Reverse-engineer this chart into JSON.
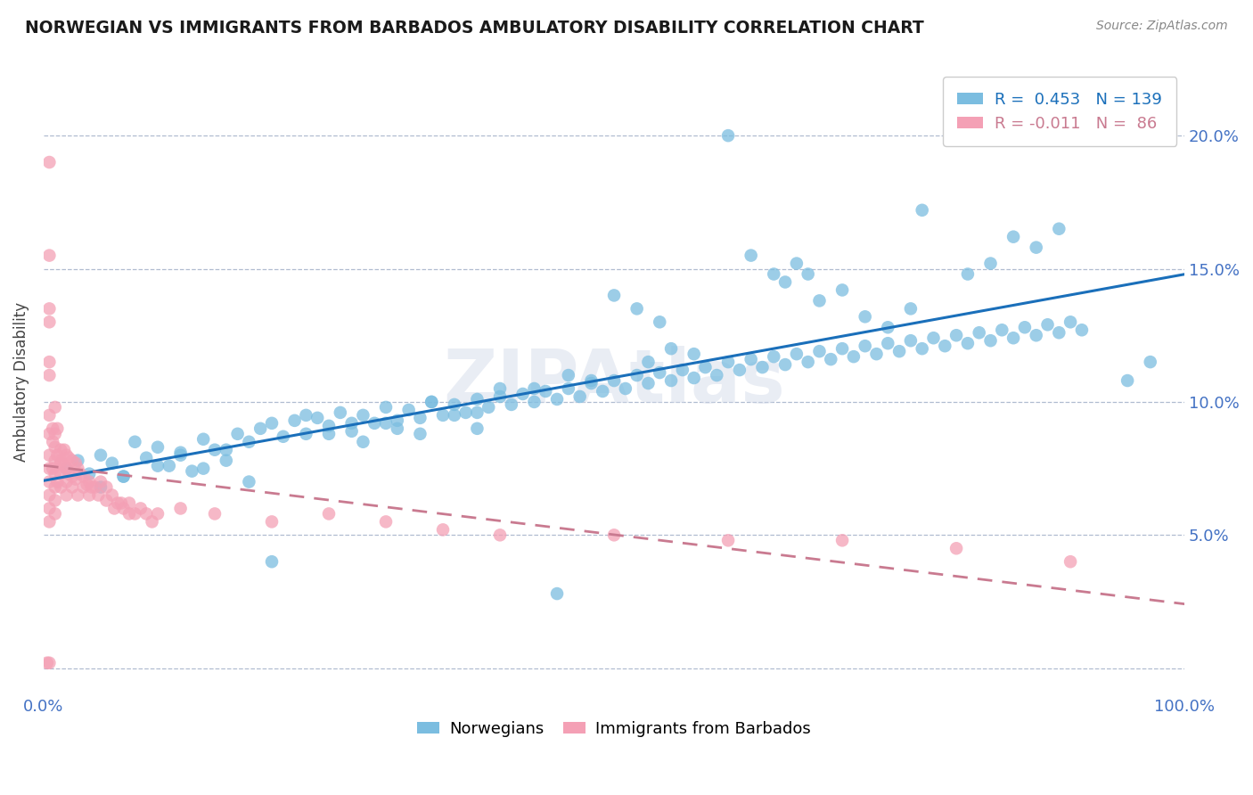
{
  "title": "NORWEGIAN VS IMMIGRANTS FROM BARBADOS AMBULATORY DISABILITY CORRELATION CHART",
  "source": "Source: ZipAtlas.com",
  "ylabel": "Ambulatory Disability",
  "xlim": [
    0.0,
    1.0
  ],
  "ylim": [
    -0.01,
    0.225
  ],
  "legend_blue_r": "0.453",
  "legend_blue_n": "139",
  "legend_pink_r": "-0.011",
  "legend_pink_n": "86",
  "blue_color": "#7bbde0",
  "pink_color": "#f4a0b5",
  "blue_line_color": "#1a6fba",
  "pink_line_color": "#c97a90",
  "legend_label_blue": "Norwegians",
  "legend_label_pink": "Immigrants from Barbados",
  "blue_scatter_x": [
    0.02,
    0.03,
    0.04,
    0.05,
    0.06,
    0.07,
    0.08,
    0.09,
    0.1,
    0.11,
    0.12,
    0.13,
    0.14,
    0.15,
    0.16,
    0.17,
    0.18,
    0.19,
    0.2,
    0.21,
    0.22,
    0.23,
    0.24,
    0.25,
    0.26,
    0.27,
    0.28,
    0.29,
    0.3,
    0.31,
    0.32,
    0.33,
    0.34,
    0.35,
    0.36,
    0.37,
    0.38,
    0.39,
    0.4,
    0.41,
    0.42,
    0.43,
    0.44,
    0.45,
    0.46,
    0.47,
    0.48,
    0.49,
    0.5,
    0.51,
    0.52,
    0.53,
    0.54,
    0.55,
    0.56,
    0.57,
    0.58,
    0.59,
    0.6,
    0.61,
    0.62,
    0.63,
    0.64,
    0.65,
    0.66,
    0.67,
    0.68,
    0.69,
    0.7,
    0.71,
    0.72,
    0.73,
    0.74,
    0.75,
    0.76,
    0.77,
    0.78,
    0.79,
    0.8,
    0.81,
    0.82,
    0.83,
    0.84,
    0.85,
    0.86,
    0.87,
    0.88,
    0.89,
    0.9,
    0.91,
    0.5,
    0.52,
    0.54,
    0.23,
    0.25,
    0.27,
    0.14,
    0.16,
    0.18,
    0.34,
    0.36,
    0.38,
    0.62,
    0.64,
    0.66,
    0.43,
    0.46,
    0.48,
    0.72,
    0.74,
    0.76,
    0.53,
    0.55,
    0.57,
    0.31,
    0.33,
    0.38,
    0.28,
    0.3,
    0.68,
    0.7,
    0.81,
    0.83,
    0.05,
    0.07,
    0.1,
    0.12,
    0.4,
    0.65,
    0.85,
    0.87,
    0.89,
    0.67,
    0.77,
    0.6,
    0.95,
    0.97,
    0.2,
    0.45
  ],
  "blue_scatter_y": [
    0.075,
    0.078,
    0.073,
    0.08,
    0.077,
    0.072,
    0.085,
    0.079,
    0.083,
    0.076,
    0.081,
    0.074,
    0.086,
    0.082,
    0.078,
    0.088,
    0.085,
    0.09,
    0.092,
    0.087,
    0.093,
    0.088,
    0.094,
    0.091,
    0.096,
    0.089,
    0.095,
    0.092,
    0.098,
    0.093,
    0.097,
    0.094,
    0.1,
    0.095,
    0.099,
    0.096,
    0.101,
    0.098,
    0.102,
    0.099,
    0.103,
    0.1,
    0.104,
    0.101,
    0.105,
    0.102,
    0.107,
    0.104,
    0.108,
    0.105,
    0.11,
    0.107,
    0.111,
    0.108,
    0.112,
    0.109,
    0.113,
    0.11,
    0.115,
    0.112,
    0.116,
    0.113,
    0.117,
    0.114,
    0.118,
    0.115,
    0.119,
    0.116,
    0.12,
    0.117,
    0.121,
    0.118,
    0.122,
    0.119,
    0.123,
    0.12,
    0.124,
    0.121,
    0.125,
    0.122,
    0.126,
    0.123,
    0.127,
    0.124,
    0.128,
    0.125,
    0.129,
    0.126,
    0.13,
    0.127,
    0.14,
    0.135,
    0.13,
    0.095,
    0.088,
    0.092,
    0.075,
    0.082,
    0.07,
    0.1,
    0.095,
    0.09,
    0.155,
    0.148,
    0.152,
    0.105,
    0.11,
    0.108,
    0.132,
    0.128,
    0.135,
    0.115,
    0.12,
    0.118,
    0.09,
    0.088,
    0.096,
    0.085,
    0.092,
    0.138,
    0.142,
    0.148,
    0.152,
    0.068,
    0.072,
    0.076,
    0.08,
    0.105,
    0.145,
    0.162,
    0.158,
    0.165,
    0.148,
    0.172,
    0.2,
    0.108,
    0.115,
    0.04,
    0.028
  ],
  "pink_scatter_x": [
    0.005,
    0.005,
    0.005,
    0.005,
    0.005,
    0.005,
    0.005,
    0.005,
    0.005,
    0.005,
    0.01,
    0.01,
    0.01,
    0.01,
    0.01,
    0.01,
    0.01,
    0.01,
    0.015,
    0.015,
    0.015,
    0.015,
    0.015,
    0.02,
    0.02,
    0.02,
    0.02,
    0.025,
    0.025,
    0.025,
    0.03,
    0.03,
    0.035,
    0.035,
    0.04,
    0.04,
    0.045,
    0.05,
    0.055,
    0.06,
    0.065,
    0.07,
    0.075,
    0.08,
    0.085,
    0.09,
    0.095,
    0.1,
    0.12,
    0.15,
    0.2,
    0.25,
    0.3,
    0.35,
    0.4,
    0.5,
    0.6,
    0.7,
    0.8,
    0.9,
    0.005,
    0.005,
    0.005,
    0.005,
    0.005,
    0.008,
    0.008,
    0.008,
    0.012,
    0.012,
    0.012,
    0.018,
    0.018,
    0.022,
    0.022,
    0.028,
    0.028,
    0.032,
    0.038,
    0.042,
    0.048,
    0.055,
    0.062,
    0.068,
    0.075,
    0.003
  ],
  "pink_scatter_y": [
    0.155,
    0.135,
    0.115,
    0.095,
    0.075,
    0.055,
    0.07,
    0.08,
    0.065,
    0.088,
    0.078,
    0.068,
    0.083,
    0.073,
    0.063,
    0.058,
    0.088,
    0.098,
    0.082,
    0.077,
    0.068,
    0.073,
    0.078,
    0.075,
    0.07,
    0.08,
    0.065,
    0.072,
    0.068,
    0.078,
    0.075,
    0.065,
    0.072,
    0.068,
    0.07,
    0.065,
    0.068,
    0.07,
    0.068,
    0.065,
    0.062,
    0.06,
    0.062,
    0.058,
    0.06,
    0.058,
    0.055,
    0.058,
    0.06,
    0.058,
    0.055,
    0.058,
    0.055,
    0.052,
    0.05,
    0.05,
    0.048,
    0.048,
    0.045,
    0.04,
    0.002,
    0.19,
    0.13,
    0.11,
    0.06,
    0.085,
    0.075,
    0.09,
    0.08,
    0.07,
    0.09,
    0.076,
    0.082,
    0.073,
    0.079,
    0.071,
    0.077,
    0.073,
    0.069,
    0.068,
    0.065,
    0.063,
    0.06,
    0.062,
    0.058,
    0.002
  ]
}
